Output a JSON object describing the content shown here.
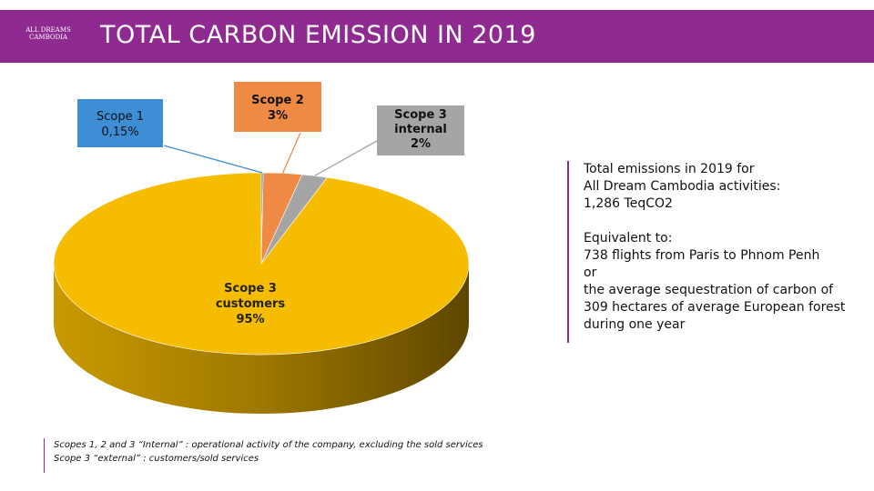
{
  "header": {
    "title": "TOTAL CARBON EMISSION IN 2019",
    "logo_text": "ALL DREAMS CAMBODIA"
  },
  "chart_data": {
    "type": "pie",
    "title": "Total carbon emission in 2019",
    "slices": [
      {
        "name": "Scope 1",
        "value": 0.15,
        "label_value": "0,15%",
        "color": "#3e8ed6"
      },
      {
        "name": "Scope 2",
        "value": 3,
        "label_value": "3%",
        "color": "#ee8a44"
      },
      {
        "name": "Scope 3 internal",
        "value": 2,
        "label_value": "2%",
        "color": "#a5a5a5"
      },
      {
        "name": "Scope 3 customers",
        "value": 95,
        "label_value": "95%",
        "color": "#f6bd00"
      }
    ]
  },
  "labels": {
    "scope1": {
      "line1": "Scope 1",
      "line2": "0,15%"
    },
    "scope2": {
      "line1": "Scope 2",
      "line2": "3%"
    },
    "scope3i": {
      "line1": "Scope 3",
      "line2": "internal",
      "line3": "2%"
    },
    "scope3c": {
      "line1": "Scope 3",
      "line2": "customers",
      "line3": "95%"
    }
  },
  "info": {
    "l1": "Total emissions in 2019 for",
    "l2": "All Dream Cambodia activities:",
    "l3": "1,286 TeqCO2",
    "l4": "Equivalent to:",
    "l5": "738 flights from Paris to Phnom Penh",
    "l6": "or",
    "l7": "the average sequestration of carbon of",
    "l8": "309 hectares of average European forest",
    "l9": "during one year"
  },
  "footnote": {
    "l1": "Scopes 1, 2 and 3 “Internal” : operational activity of the company, excluding the sold services",
    "l2": "Scope 3  “external” : customers/sold services"
  }
}
